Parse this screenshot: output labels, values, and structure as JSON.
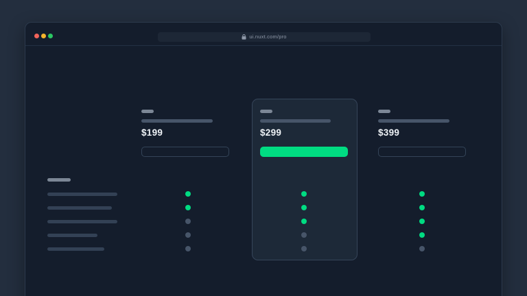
{
  "window": {
    "url": "ui.nuxt.com/pro",
    "traffic_lights": [
      {
        "name": "close",
        "color": "#f0635a"
      },
      {
        "name": "minimize",
        "color": "#f6b42c"
      },
      {
        "name": "zoom",
        "color": "#2bc763"
      }
    ]
  },
  "pricing": {
    "tiers": [
      {
        "price": "$199",
        "highlighted": false,
        "features": [
          true,
          true,
          false,
          false,
          false
        ]
      },
      {
        "price": "$299",
        "highlighted": true,
        "features": [
          true,
          true,
          true,
          false,
          false
        ]
      },
      {
        "price": "$399",
        "highlighted": false,
        "features": [
          true,
          true,
          true,
          true,
          false
        ]
      }
    ],
    "feature_row_count": 5
  },
  "colors": {
    "accent_green": "#00DC82",
    "inactive_dot": "#475569",
    "window_bg": "#141d2c",
    "card_bg": "#1d2938",
    "outer_bg": "#232e3e"
  },
  "icons": {
    "lock": "lock-icon"
  }
}
